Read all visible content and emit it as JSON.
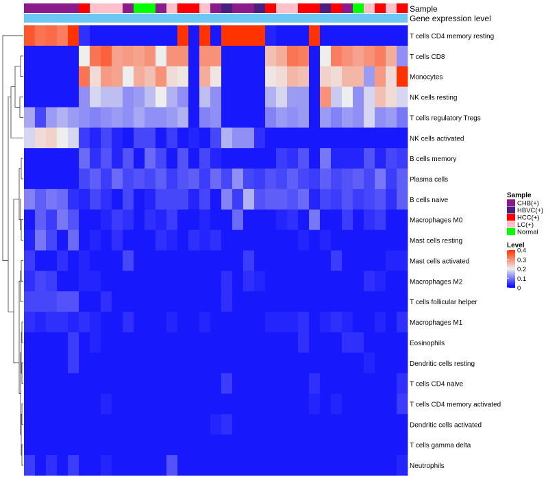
{
  "chart_data": {
    "type": "heatmap",
    "annotation_titles": [
      "Sample",
      "Gene expression level"
    ],
    "columns": 35,
    "sample_groups": [
      "CHB",
      "CHB",
      "CHB",
      "CHB",
      "CHB",
      "HCC",
      "LC",
      "LC",
      "LC",
      "CHB",
      "Normal",
      "Normal",
      "CHB",
      "LC",
      "HCC",
      "HCC",
      "LC",
      "CHB",
      "HBVC",
      "CHB",
      "CHB",
      "HBVC",
      "HCC",
      "LC",
      "LC",
      "HCC",
      "HCC",
      "HBVC",
      "HCC",
      "CHB",
      "Normal",
      "LC",
      "HCC",
      "LC",
      "HCC"
    ],
    "rows": [
      {
        "label": "T cells CD4 memory resting",
        "values": [
          0.36,
          0.33,
          0.34,
          0.32,
          0.4,
          0.04,
          0.02,
          0.02,
          0.02,
          0.02,
          0.02,
          0.02,
          0.02,
          0.02,
          0.4,
          0.02,
          0.4,
          0.02,
          0.4,
          0.4,
          0.4,
          0.4,
          0.03,
          0.02,
          0.02,
          0.02,
          0.4,
          0.02,
          0.02,
          0.02,
          0.02,
          0.02,
          0.02,
          0.02,
          0.02
        ]
      },
      {
        "label": "T cells CD8",
        "values": [
          0.02,
          0.02,
          0.02,
          0.02,
          0.02,
          0.2,
          0.33,
          0.35,
          0.28,
          0.29,
          0.28,
          0.3,
          0.2,
          0.3,
          0.3,
          0.02,
          0.3,
          0.3,
          0.02,
          0.02,
          0.02,
          0.02,
          0.25,
          0.27,
          0.33,
          0.32,
          0.02,
          0.2,
          0.32,
          0.3,
          0.28,
          0.3,
          0.32,
          0.27,
          0.12
        ]
      },
      {
        "label": "Monocytes",
        "values": [
          0.02,
          0.02,
          0.02,
          0.02,
          0.02,
          0.33,
          0.22,
          0.29,
          0.28,
          0.2,
          0.27,
          0.25,
          0.3,
          0.22,
          0.21,
          0.02,
          0.27,
          0.21,
          0.02,
          0.02,
          0.02,
          0.02,
          0.21,
          0.22,
          0.26,
          0.25,
          0.02,
          0.23,
          0.22,
          0.26,
          0.26,
          0.13,
          0.29,
          0.22,
          0.4
        ]
      },
      {
        "label": "NK cells resting",
        "values": [
          0.02,
          0.02,
          0.02,
          0.02,
          0.02,
          0.12,
          0.18,
          0.16,
          0.16,
          0.12,
          0.13,
          0.16,
          0.2,
          0.15,
          0.12,
          0.02,
          0.16,
          0.12,
          0.02,
          0.02,
          0.02,
          0.02,
          0.15,
          0.18,
          0.13,
          0.13,
          0.02,
          0.3,
          0.17,
          0.2,
          0.12,
          0.18,
          0.25,
          0.22,
          0.18
        ]
      },
      {
        "label": "T cells regulatory  Tregs",
        "values": [
          0.14,
          0.06,
          0.13,
          0.15,
          0.13,
          0.12,
          0.11,
          0.12,
          0.13,
          0.12,
          0.14,
          0.12,
          0.12,
          0.13,
          0.15,
          0.02,
          0.11,
          0.12,
          0.02,
          0.02,
          0.02,
          0.02,
          0.11,
          0.13,
          0.12,
          0.13,
          0.02,
          0.13,
          0.11,
          0.13,
          0.12,
          0.18,
          0.12,
          0.13,
          0.1
        ]
      },
      {
        "label": "NK cells activated",
        "values": [
          0.18,
          0.22,
          0.23,
          0.2,
          0.18,
          0.05,
          0.03,
          0.06,
          0.03,
          0.02,
          0.06,
          0.06,
          0.02,
          0.05,
          0.02,
          0.03,
          0.02,
          0.06,
          0.15,
          0.12,
          0.12,
          0.04,
          0.02,
          0.02,
          0.02,
          0.02,
          0.02,
          0.02,
          0.02,
          0.02,
          0.02,
          0.02,
          0.02,
          0.02,
          0.02
        ]
      },
      {
        "label": "B cells memory",
        "values": [
          0.02,
          0.02,
          0.02,
          0.02,
          0.02,
          0.09,
          0.04,
          0.07,
          0.03,
          0.07,
          0.02,
          0.09,
          0.06,
          0.02,
          0.07,
          0.02,
          0.06,
          0.03,
          0.02,
          0.02,
          0.02,
          0.02,
          0.02,
          0.05,
          0.04,
          0.07,
          0.02,
          0.1,
          0.03,
          0.03,
          0.03,
          0.07,
          0.03,
          0.06,
          0.05
        ]
      },
      {
        "label": "Plasma cells",
        "values": [
          0.02,
          0.02,
          0.02,
          0.02,
          0.02,
          0.06,
          0.08,
          0.05,
          0.09,
          0.06,
          0.07,
          0.06,
          0.08,
          0.05,
          0.07,
          0.08,
          0.05,
          0.09,
          0.06,
          0.12,
          0.06,
          0.05,
          0.07,
          0.06,
          0.08,
          0.06,
          0.05,
          0.08,
          0.06,
          0.07,
          0.08,
          0.06,
          0.1,
          0.05,
          0.08
        ]
      },
      {
        "label": "B cells naive",
        "values": [
          0.11,
          0.08,
          0.1,
          0.09,
          0.04,
          0.03,
          0.06,
          0.04,
          0.02,
          0.06,
          0.02,
          0.03,
          0.06,
          0.06,
          0.06,
          0.03,
          0.06,
          0.02,
          0.11,
          0.05,
          0.15,
          0.07,
          0.08,
          0.08,
          0.07,
          0.09,
          0.03,
          0.06,
          0.05,
          0.07,
          0.05,
          0.06,
          0.07,
          0.04,
          0.08
        ]
      },
      {
        "label": "Macrophages M0",
        "values": [
          0.02,
          0.08,
          0.05,
          0.1,
          0.07,
          0.02,
          0.02,
          0.03,
          0.05,
          0.04,
          0.02,
          0.04,
          0.03,
          0.05,
          0.02,
          0.02,
          0.03,
          0.02,
          0.02,
          0.09,
          0.02,
          0.02,
          0.02,
          0.03,
          0.04,
          0.02,
          0.1,
          0.02,
          0.02,
          0.05,
          0.02,
          0.04,
          0.05,
          0.02,
          0.02
        ]
      },
      {
        "label": "Mast cells resting",
        "values": [
          0.03,
          0.1,
          0.06,
          0.02,
          0.09,
          0.02,
          0.03,
          0.02,
          0.04,
          0.02,
          0.02,
          0.02,
          0.04,
          0.03,
          0.02,
          0.04,
          0.03,
          0.04,
          0.02,
          0.02,
          0.02,
          0.02,
          0.02,
          0.02,
          0.02,
          0.03,
          0.02,
          0.03,
          0.02,
          0.02,
          0.02,
          0.02,
          0.02,
          0.02,
          0.02
        ]
      },
      {
        "label": "Mast cells activated",
        "values": [
          0.05,
          0.02,
          0.02,
          0.04,
          0.02,
          0.03,
          0.02,
          0.02,
          0.02,
          0.06,
          0.02,
          0.02,
          0.02,
          0.02,
          0.02,
          0.02,
          0.02,
          0.02,
          0.02,
          0.02,
          0.05,
          0.02,
          0.02,
          0.02,
          0.02,
          0.02,
          0.02,
          0.02,
          0.05,
          0.02,
          0.02,
          0.02,
          0.02,
          0.03,
          0.03
        ]
      },
      {
        "label": "Macrophages M2",
        "values": [
          0.04,
          0.06,
          0.05,
          0.02,
          0.02,
          0.03,
          0.03,
          0.02,
          0.02,
          0.02,
          0.02,
          0.02,
          0.02,
          0.02,
          0.02,
          0.02,
          0.02,
          0.02,
          0.04,
          0.02,
          0.04,
          0.03,
          0.02,
          0.02,
          0.02,
          0.02,
          0.02,
          0.02,
          0.02,
          0.02,
          0.02,
          0.04,
          0.03,
          0.02,
          0.02
        ]
      },
      {
        "label": "T cells follicular helper",
        "values": [
          0.06,
          0.06,
          0.06,
          0.07,
          0.07,
          0.02,
          0.02,
          0.04,
          0.02,
          0.02,
          0.02,
          0.02,
          0.02,
          0.02,
          0.02,
          0.02,
          0.02,
          0.02,
          0.04,
          0.02,
          0.02,
          0.02,
          0.02,
          0.02,
          0.02,
          0.02,
          0.02,
          0.02,
          0.02,
          0.02,
          0.02,
          0.02,
          0.02,
          0.02,
          0.02
        ]
      },
      {
        "label": "Macrophages M1",
        "values": [
          0.04,
          0.03,
          0.04,
          0.04,
          0.03,
          0.04,
          0.03,
          0.02,
          0.02,
          0.04,
          0.02,
          0.02,
          0.02,
          0.03,
          0.02,
          0.02,
          0.03,
          0.02,
          0.02,
          0.02,
          0.02,
          0.02,
          0.03,
          0.03,
          0.03,
          0.04,
          0.02,
          0.03,
          0.04,
          0.03,
          0.02,
          0.02,
          0.03,
          0.02,
          0.04
        ]
      },
      {
        "label": "Eosinophils",
        "values": [
          0.02,
          0.02,
          0.02,
          0.02,
          0.05,
          0.02,
          0.03,
          0.02,
          0.02,
          0.02,
          0.02,
          0.02,
          0.02,
          0.02,
          0.02,
          0.02,
          0.02,
          0.02,
          0.02,
          0.02,
          0.02,
          0.02,
          0.02,
          0.02,
          0.02,
          0.04,
          0.02,
          0.02,
          0.02,
          0.04,
          0.04,
          0.02,
          0.02,
          0.02,
          0.02
        ]
      },
      {
        "label": "Dendritic cells resting",
        "values": [
          0.02,
          0.02,
          0.02,
          0.02,
          0.05,
          0.02,
          0.02,
          0.02,
          0.02,
          0.02,
          0.02,
          0.02,
          0.02,
          0.02,
          0.02,
          0.02,
          0.02,
          0.02,
          0.02,
          0.02,
          0.02,
          0.02,
          0.02,
          0.02,
          0.02,
          0.02,
          0.02,
          0.02,
          0.02,
          0.02,
          0.02,
          0.03,
          0.02,
          0.02,
          0.02
        ]
      },
      {
        "label": "T cells CD4 naive",
        "values": [
          0.02,
          0.02,
          0.02,
          0.02,
          0.02,
          0.02,
          0.02,
          0.02,
          0.02,
          0.02,
          0.02,
          0.02,
          0.02,
          0.02,
          0.02,
          0.02,
          0.02,
          0.02,
          0.05,
          0.02,
          0.02,
          0.02,
          0.02,
          0.02,
          0.02,
          0.02,
          0.04,
          0.02,
          0.02,
          0.02,
          0.02,
          0.02,
          0.02,
          0.02,
          0.04
        ]
      },
      {
        "label": "T cells CD4 memory activated",
        "values": [
          0.02,
          0.02,
          0.02,
          0.02,
          0.02,
          0.02,
          0.02,
          0.03,
          0.02,
          0.02,
          0.02,
          0.02,
          0.02,
          0.02,
          0.02,
          0.02,
          0.02,
          0.02,
          0.02,
          0.02,
          0.02,
          0.02,
          0.02,
          0.02,
          0.02,
          0.02,
          0.03,
          0.02,
          0.03,
          0.02,
          0.02,
          0.02,
          0.02,
          0.02,
          0.05
        ]
      },
      {
        "label": "Dendritic cells activated",
        "values": [
          0.02,
          0.02,
          0.02,
          0.02,
          0.02,
          0.02,
          0.02,
          0.02,
          0.02,
          0.02,
          0.02,
          0.02,
          0.02,
          0.02,
          0.02,
          0.02,
          0.02,
          0.03,
          0.04,
          0.02,
          0.02,
          0.02,
          0.02,
          0.02,
          0.02,
          0.02,
          0.02,
          0.02,
          0.02,
          0.02,
          0.02,
          0.02,
          0.02,
          0.02,
          0.02
        ]
      },
      {
        "label": "T cells gamma delta",
        "values": [
          0.02,
          0.02,
          0.02,
          0.02,
          0.02,
          0.02,
          0.02,
          0.02,
          0.02,
          0.02,
          0.02,
          0.02,
          0.02,
          0.02,
          0.02,
          0.02,
          0.02,
          0.02,
          0.02,
          0.02,
          0.02,
          0.02,
          0.02,
          0.02,
          0.02,
          0.02,
          0.02,
          0.02,
          0.02,
          0.02,
          0.02,
          0.02,
          0.02,
          0.02,
          0.02
        ]
      },
      {
        "label": "Neutrophils",
        "values": [
          0.05,
          0.02,
          0.04,
          0.02,
          0.05,
          0.02,
          0.02,
          0.03,
          0.02,
          0.02,
          0.02,
          0.02,
          0.02,
          0.07,
          0.02,
          0.02,
          0.02,
          0.02,
          0.02,
          0.02,
          0.02,
          0.02,
          0.02,
          0.02,
          0.02,
          0.02,
          0.02,
          0.02,
          0.02,
          0.02,
          0.02,
          0.02,
          0.02,
          0.02,
          0.03
        ]
      }
    ],
    "color_scale": {
      "min": 0,
      "max": 0.4,
      "low": "#0000ff",
      "mid": "#eeeeee",
      "high": "#ff3300",
      "midpoint": 0.2
    },
    "legend_sample": {
      "title": "Sample",
      "entries": [
        {
          "key": "CHB",
          "label": "CHB(+)",
          "color": "#8b1a8b"
        },
        {
          "key": "HBVC",
          "label": "HBVC(+)",
          "color": "#4a1f80"
        },
        {
          "key": "HCC",
          "label": "HCC(+)",
          "color": "#ff0000"
        },
        {
          "key": "LC",
          "label": "LC(+)",
          "color": "#ffc0cb"
        },
        {
          "key": "Normal",
          "label": "Normal",
          "color": "#00ff00"
        }
      ]
    },
    "legend_level": {
      "title": "Level",
      "ticks": [
        "0.4",
        "0.3",
        "0.2",
        "0.1",
        "0"
      ],
      "tick_values": [
        0.4,
        0.3,
        0.2,
        0.1,
        0
      ]
    },
    "expression_bar_color": "#6cc7f5"
  }
}
